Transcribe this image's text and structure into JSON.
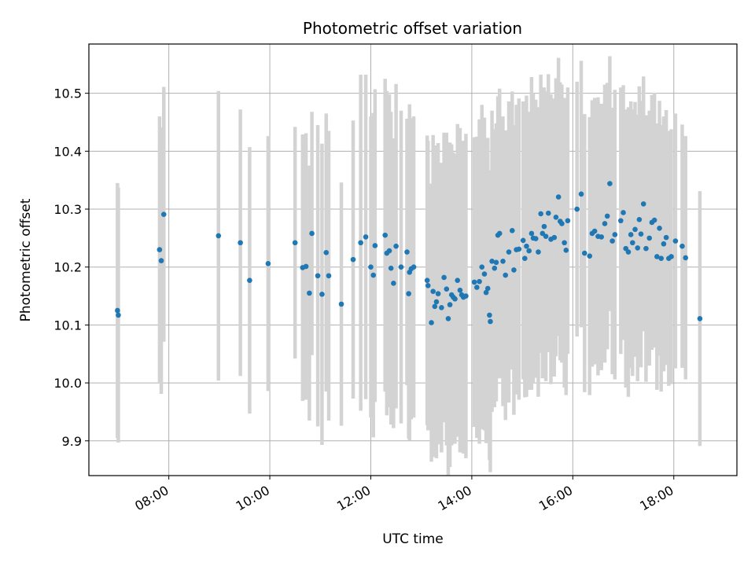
{
  "chart_data": {
    "type": "scatter",
    "title": "Photometric offset variation",
    "xlabel": "UTC time",
    "ylabel": "Photometric offset",
    "x_ticks": [
      "08:00",
      "10:00",
      "12:00",
      "14:00",
      "16:00",
      "18:00"
    ],
    "y_ticks": [
      "9.9",
      "10.0",
      "10.1",
      "10.2",
      "10.3",
      "10.4",
      "10.5"
    ],
    "xlim": [
      "06:25",
      "19:15"
    ],
    "ylim": [
      9.84,
      10.585
    ],
    "grid": true,
    "colors": {
      "point": "#1f77b4",
      "errorbar": "#d3d3d3"
    },
    "series": [
      {
        "points": [
          [
            "06:59",
            10.125,
            0.22
          ],
          [
            "07:00",
            10.117,
            0.22
          ],
          [
            "07:49",
            10.23,
            0.23
          ],
          [
            "07:51",
            10.211,
            0.23
          ],
          [
            "07:54",
            10.291,
            0.22
          ],
          [
            "08:59",
            10.254,
            0.25
          ],
          [
            "09:25",
            10.242,
            0.23
          ],
          [
            "09:36",
            10.177,
            0.23
          ],
          [
            "09:58",
            10.206,
            0.22
          ],
          [
            "10:30",
            10.242,
            0.2
          ],
          [
            "10:39",
            10.199,
            0.23
          ],
          [
            "10:43",
            10.201,
            0.23
          ],
          [
            "10:47",
            10.155,
            0.22
          ],
          [
            "10:50",
            10.258,
            0.21
          ],
          [
            "10:57",
            10.185,
            0.26
          ],
          [
            "11:02",
            10.153,
            0.26
          ],
          [
            "11:07",
            10.225,
            0.24
          ],
          [
            "11:10",
            10.185,
            0.25
          ],
          [
            "11:25",
            10.136,
            0.21
          ],
          [
            "11:39",
            10.213,
            0.24
          ],
          [
            "11:48",
            10.242,
            0.29
          ],
          [
            "11:54",
            10.252,
            0.28
          ],
          [
            "12:00",
            10.2,
            0.26
          ],
          [
            "12:03",
            10.186,
            0.28
          ],
          [
            "12:05",
            10.237,
            0.27
          ],
          [
            "12:17",
            10.255,
            0.27
          ],
          [
            "12:19",
            10.224,
            0.28
          ],
          [
            "12:22",
            10.228,
            0.27
          ],
          [
            "12:24",
            10.198,
            0.27
          ],
          [
            "12:27",
            10.172,
            0.25
          ],
          [
            "12:30",
            10.236,
            0.28
          ],
          [
            "12:36",
            10.2,
            0.27
          ],
          [
            "12:43",
            10.226,
            0.23
          ],
          [
            "12:45",
            10.154,
            0.25
          ],
          [
            "12:46",
            10.191,
            0.29
          ],
          [
            "12:48",
            10.197,
            0.26
          ],
          [
            "12:51",
            10.2,
            0.26
          ],
          [
            "13:07",
            10.177,
            0.25
          ],
          [
            "13:08",
            10.168,
            0.25
          ],
          [
            "13:12",
            10.104,
            0.24
          ],
          [
            "13:14",
            10.158,
            0.27
          ],
          [
            "13:16",
            10.132,
            0.26
          ],
          [
            "13:18",
            10.14,
            0.27
          ],
          [
            "13:20",
            10.154,
            0.26
          ],
          [
            "13:24",
            10.13,
            0.25
          ],
          [
            "13:27",
            10.182,
            0.25
          ],
          [
            "13:30",
            10.162,
            0.27
          ],
          [
            "13:32",
            10.111,
            0.27
          ],
          [
            "13:34",
            10.135,
            0.28
          ],
          [
            "13:36",
            10.152,
            0.26
          ],
          [
            "13:38",
            10.148,
            0.25
          ],
          [
            "13:40",
            10.145,
            0.25
          ],
          [
            "13:43",
            10.177,
            0.27
          ],
          [
            "13:46",
            10.16,
            0.28
          ],
          [
            "13:48",
            10.152,
            0.26
          ],
          [
            "13:50",
            10.148,
            0.27
          ],
          [
            "13:53",
            10.15,
            0.28
          ],
          [
            "14:03",
            10.174,
            0.25
          ],
          [
            "14:06",
            10.165,
            0.26
          ],
          [
            "14:09",
            10.175,
            0.28
          ],
          [
            "14:12",
            10.2,
            0.28
          ],
          [
            "14:15",
            10.188,
            0.27
          ],
          [
            "14:17",
            10.156,
            0.26
          ],
          [
            "14:19",
            10.163,
            0.26
          ],
          [
            "14:21",
            10.117,
            0.25
          ],
          [
            "14:22",
            10.106,
            0.26
          ],
          [
            "14:24",
            10.21,
            0.26
          ],
          [
            "14:27",
            10.198,
            0.24
          ],
          [
            "14:29",
            10.208,
            0.24
          ],
          [
            "14:31",
            10.255,
            0.24
          ],
          [
            "14:33",
            10.258,
            0.25
          ],
          [
            "14:37",
            10.21,
            0.25
          ],
          [
            "14:40",
            10.186,
            0.25
          ],
          [
            "14:44",
            10.226,
            0.26
          ],
          [
            "14:48",
            10.263,
            0.24
          ],
          [
            "14:50",
            10.195,
            0.25
          ],
          [
            "14:53",
            10.23,
            0.25
          ],
          [
            "14:56",
            10.231,
            0.26
          ],
          [
            "15:01",
            10.246,
            0.24
          ],
          [
            "15:03",
            10.215,
            0.24
          ],
          [
            "15:05",
            10.236,
            0.26
          ],
          [
            "15:08",
            10.228,
            0.24
          ],
          [
            "15:11",
            10.258,
            0.27
          ],
          [
            "15:13",
            10.25,
            0.25
          ],
          [
            "15:16",
            10.249,
            0.24
          ],
          [
            "15:19",
            10.226,
            0.25
          ],
          [
            "15:22",
            10.292,
            0.24
          ],
          [
            "15:24",
            10.258,
            0.25
          ],
          [
            "15:26",
            10.27,
            0.24
          ],
          [
            "15:28",
            10.253,
            0.25
          ],
          [
            "15:31",
            10.293,
            0.24
          ],
          [
            "15:34",
            10.248,
            0.25
          ],
          [
            "15:38",
            10.251,
            0.24
          ],
          [
            "15:40",
            10.286,
            0.24
          ],
          [
            "15:43",
            10.321,
            0.24
          ],
          [
            "15:45",
            10.279,
            0.24
          ],
          [
            "15:47",
            10.275,
            0.24
          ],
          [
            "15:50",
            10.242,
            0.25
          ],
          [
            "15:52",
            10.229,
            0.25
          ],
          [
            "15:54",
            10.28,
            0.23
          ],
          [
            "16:05",
            10.3,
            0.22
          ],
          [
            "16:10",
            10.326,
            0.23
          ],
          [
            "16:14",
            10.224,
            0.24
          ],
          [
            "16:20",
            10.219,
            0.24
          ],
          [
            "16:23",
            10.258,
            0.23
          ],
          [
            "16:26",
            10.262,
            0.23
          ],
          [
            "16:30",
            10.253,
            0.24
          ],
          [
            "16:34",
            10.252,
            0.23
          ],
          [
            "16:38",
            10.275,
            0.24
          ],
          [
            "16:41",
            10.288,
            0.23
          ],
          [
            "16:44",
            10.344,
            0.22
          ],
          [
            "16:47",
            10.245,
            0.23
          ],
          [
            "16:50",
            10.256,
            0.25
          ],
          [
            "16:57",
            10.28,
            0.23
          ],
          [
            "17:00",
            10.294,
            0.22
          ],
          [
            "17:03",
            10.232,
            0.24
          ],
          [
            "17:06",
            10.226,
            0.25
          ],
          [
            "17:09",
            10.256,
            0.23
          ],
          [
            "17:11",
            10.242,
            0.23
          ],
          [
            "17:14",
            10.265,
            0.22
          ],
          [
            "17:17",
            10.233,
            0.23
          ],
          [
            "17:19",
            10.282,
            0.23
          ],
          [
            "17:21",
            10.257,
            0.23
          ],
          [
            "17:24",
            10.309,
            0.22
          ],
          [
            "17:27",
            10.232,
            0.23
          ],
          [
            "17:31",
            10.25,
            0.22
          ],
          [
            "17:34",
            10.277,
            0.22
          ],
          [
            "17:37",
            10.281,
            0.22
          ],
          [
            "17:40",
            10.218,
            0.23
          ],
          [
            "17:43",
            10.267,
            0.22
          ],
          [
            "17:45",
            10.215,
            0.23
          ],
          [
            "17:48",
            10.24,
            0.22
          ],
          [
            "17:51",
            10.251,
            0.22
          ],
          [
            "17:54",
            10.215,
            0.22
          ],
          [
            "17:57",
            10.218,
            0.22
          ],
          [
            "18:02",
            10.245,
            0.22
          ],
          [
            "18:10",
            10.236,
            0.21
          ],
          [
            "18:14",
            10.216,
            0.21
          ],
          [
            "18:31",
            10.111,
            0.22
          ]
        ]
      }
    ]
  }
}
